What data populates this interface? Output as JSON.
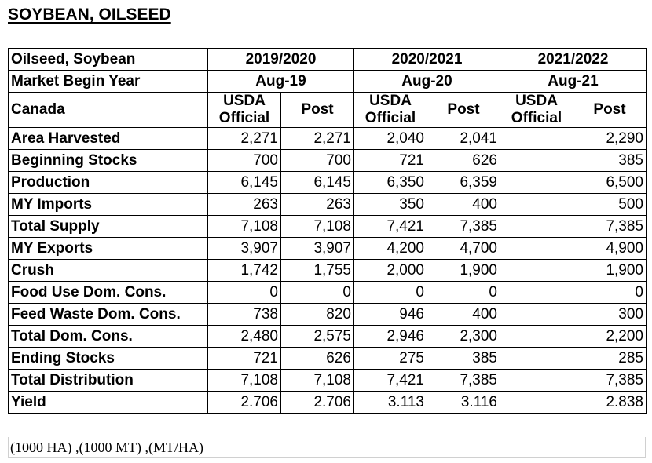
{
  "title": "SOYBEAN, OILSEED",
  "header": {
    "commodity": "Oilseed, Soybean",
    "market_year_label": "Market Begin Year",
    "country": "Canada",
    "years": [
      {
        "label": "2019/2020",
        "begin": "Aug-19"
      },
      {
        "label": "2020/2021",
        "begin": "Aug-20"
      },
      {
        "label": "2021/2022",
        "begin": "Aug-21"
      }
    ],
    "usda_line1": "USDA",
    "usda_line2": "Official",
    "post": "Post"
  },
  "rows": [
    {
      "label": "Area Harvested",
      "values": [
        "2,271",
        "2,271",
        "2,040",
        "2,041",
        "",
        "2,290"
      ]
    },
    {
      "label": "Beginning Stocks",
      "values": [
        "700",
        "700",
        "721",
        "626",
        "",
        "385"
      ]
    },
    {
      "label": "Production",
      "values": [
        "6,145",
        "6,145",
        "6,350",
        "6,359",
        "",
        "6,500"
      ]
    },
    {
      "label": "MY Imports",
      "values": [
        "263",
        "263",
        "350",
        "400",
        "",
        "500"
      ]
    },
    {
      "label": "Total Supply",
      "values": [
        "7,108",
        "7,108",
        "7,421",
        "7,385",
        "",
        "7,385"
      ]
    },
    {
      "label": "MY Exports",
      "values": [
        "3,907",
        "3,907",
        "4,200",
        "4,700",
        "",
        "4,900"
      ]
    },
    {
      "label": "Crush",
      "values": [
        "1,742",
        "1,755",
        "2,000",
        "1,900",
        "",
        "1,900"
      ]
    },
    {
      "label": "Food Use Dom. Cons.",
      "values": [
        "0",
        "0",
        "0",
        "0",
        "",
        "0"
      ]
    },
    {
      "label": "Feed Waste Dom. Cons.",
      "values": [
        "738",
        "820",
        "946",
        "400",
        "",
        "300"
      ]
    },
    {
      "label": "Total Dom. Cons.",
      "values": [
        "2,480",
        "2,575",
        "2,946",
        "2,300",
        "",
        "2,200"
      ]
    },
    {
      "label": "Ending Stocks",
      "values": [
        "721",
        "626",
        "275",
        "385",
        "",
        "285"
      ]
    },
    {
      "label": "Total Distribution",
      "values": [
        "7,108",
        "7,108",
        "7,421",
        "7,385",
        "",
        "7,385"
      ]
    },
    {
      "label": "Yield",
      "values": [
        "2.706",
        "2.706",
        "3.113",
        "3.116",
        "",
        "2.838"
      ]
    }
  ],
  "units": "(1000 HA) ,(1000 MT) ,(MT/HA)"
}
